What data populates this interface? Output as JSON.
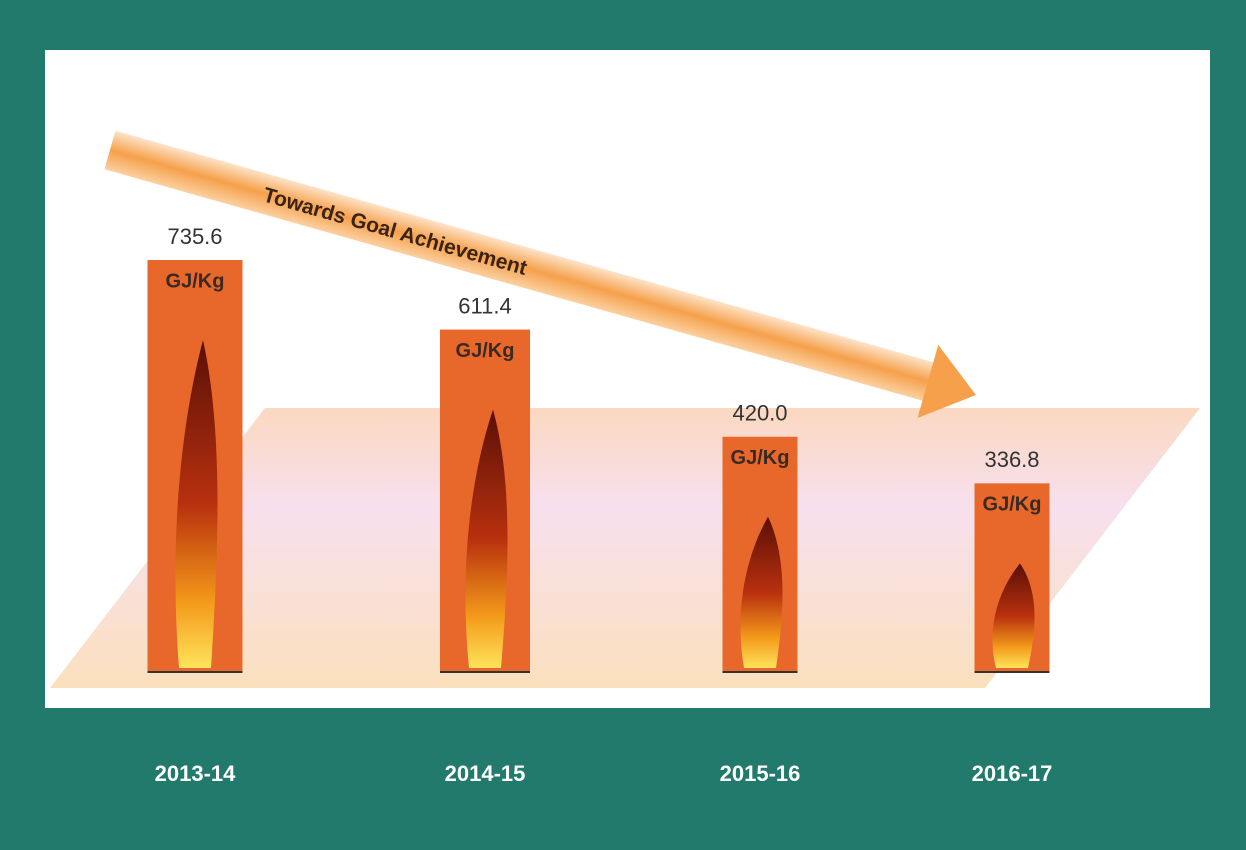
{
  "chart_data": {
    "type": "bar",
    "annotation": "Towards Goal Achievement",
    "unit": "GJ/Kg",
    "categories": [
      "2013-14",
      "2014-15",
      "2015-16",
      "2016-17"
    ],
    "values": [
      735.6,
      611.4,
      420.0,
      336.8
    ],
    "value_labels": [
      "735.6",
      "611.4",
      "420.0",
      "336.8"
    ],
    "color": "#e8672a"
  }
}
